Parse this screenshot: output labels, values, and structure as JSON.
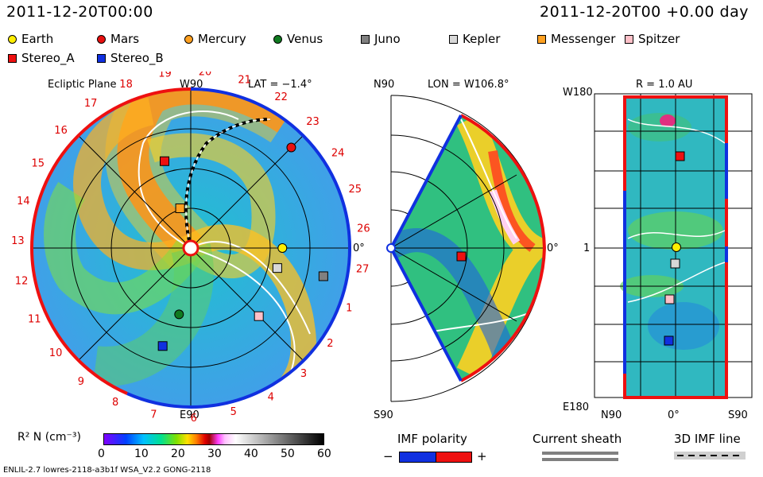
{
  "header": {
    "datetime_left": "2011-12-20T00:00",
    "datetime_right": "2011-12-20T00 +0.00 day"
  },
  "legend": {
    "items": [
      {
        "label": "Earth",
        "shape": "circle",
        "color": "#ffee00"
      },
      {
        "label": "Mars",
        "shape": "circle",
        "color": "#e81010"
      },
      {
        "label": "Mercury",
        "shape": "circle",
        "color": "#ffa020"
      },
      {
        "label": "Venus",
        "shape": "circle",
        "color": "#107a20"
      },
      {
        "label": "Juno",
        "shape": "square",
        "color": "#808080"
      },
      {
        "label": "Kepler",
        "shape": "square",
        "color": "#d8d8d8"
      },
      {
        "label": "Messenger",
        "shape": "square",
        "color": "#ffa020"
      },
      {
        "label": "Spitzer",
        "shape": "square",
        "color": "#ffc0c8"
      },
      {
        "label": "Stereo_A",
        "shape": "square",
        "color": "#ee1010"
      },
      {
        "label": "Stereo_B",
        "shape": "square",
        "color": "#1030e0"
      }
    ]
  },
  "ecliptic": {
    "title": "Ecliptic Plane",
    "lat_label": "LAT = −1.4°",
    "top_label": "W90",
    "bottom_label": "E90",
    "right_label": "0°",
    "sector_numbers": [
      "1",
      "2",
      "3",
      "4",
      "5",
      "6",
      "7",
      "8",
      "9",
      "10",
      "11",
      "12",
      "13",
      "14",
      "15",
      "16",
      "17",
      "18",
      "19",
      "20",
      "21",
      "22",
      "23",
      "24",
      "25",
      "26",
      "27"
    ]
  },
  "meridional": {
    "top_label": "N90",
    "bottom_label": "S90",
    "lon_label": "LON = W106.8°",
    "right_label": "0°"
  },
  "radial": {
    "title": "R = 1.0 AU",
    "top_left": "W180",
    "bottom_left": "E180",
    "mid_left": "1",
    "x_left": "N90",
    "x_mid": "0°",
    "x_right": "S90"
  },
  "colorbar": {
    "label": "R² N (cm⁻³)",
    "ticks": [
      "0",
      "10",
      "20",
      "30",
      "40",
      "50",
      "60"
    ],
    "min": 0,
    "max": 60
  },
  "keys": {
    "imf_polarity": "IMF polarity",
    "minus": "−",
    "plus": "+",
    "current_sheath": "Current sheath",
    "imf_line": "3D IMF line",
    "polarity_neg_color": "#1030e0",
    "polarity_pos_color": "#ee1010"
  },
  "footer": {
    "model": "ENLIL-2.7 lowres-2118-a3b1f WSA_V2.2 GONG-2118"
  },
  "chart_data": {
    "type": "heatmap",
    "title": "",
    "quantity": "R² N (cm⁻³)",
    "color_range": [
      0,
      60
    ],
    "bodies_ecliptic": [
      {
        "name": "Earth",
        "r_au": 0.98,
        "lon_deg": 0
      },
      {
        "name": "Mars",
        "r_au": 1.52,
        "lon_deg": 45
      },
      {
        "name": "Mercury",
        "r_au": 0.44,
        "lon_deg": 105
      },
      {
        "name": "Venus",
        "r_au": 0.72,
        "lon_deg": -100
      },
      {
        "name": "Juno",
        "r_au": 1.45,
        "lon_deg": -12
      },
      {
        "name": "Kepler",
        "r_au": 0.95,
        "lon_deg": -13
      },
      {
        "name": "Messenger",
        "r_au": 0.44,
        "lon_deg": 105
      },
      {
        "name": "Spitzer",
        "r_au": 1.03,
        "lon_deg": -45
      },
      {
        "name": "Stereo_A",
        "r_au": 0.97,
        "lon_deg": 106.8
      },
      {
        "name": "Stereo_B",
        "r_au": 1.09,
        "lon_deg": -106
      }
    ]
  }
}
